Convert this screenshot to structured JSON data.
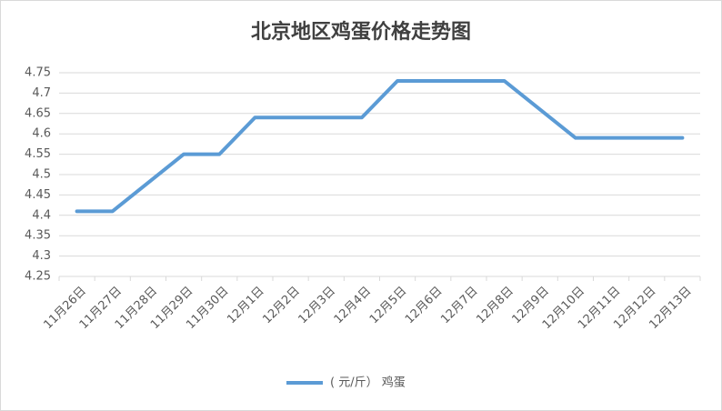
{
  "chart_data": {
    "type": "line",
    "title": "北京地区鸡蛋价格走势图",
    "categories": [
      "11月26日",
      "11月27日",
      "11月28日",
      "11月29日",
      "11月30日",
      "12月1日",
      "12月2日",
      "12月3日",
      "12月4日",
      "12月5日",
      "12月6日",
      "12月7日",
      "12月8日",
      "12月9日",
      "12月10日",
      "12月11日",
      "12月12日",
      "12月13日"
    ],
    "series": [
      {
        "name": "( 元/斤） 鸡蛋",
        "color": "#5b9bd5",
        "values": [
          4.41,
          4.41,
          4.48,
          4.55,
          4.55,
          4.64,
          4.64,
          4.64,
          4.64,
          4.73,
          4.73,
          4.73,
          4.73,
          4.66,
          4.59,
          4.59,
          4.59,
          4.59
        ]
      }
    ],
    "ylim": [
      4.25,
      4.75
    ],
    "yticks": [
      4.25,
      4.3,
      4.35,
      4.4,
      4.45,
      4.5,
      4.55,
      4.6,
      4.65,
      4.7,
      4.75
    ],
    "grid": true,
    "legend": "bottom"
  }
}
